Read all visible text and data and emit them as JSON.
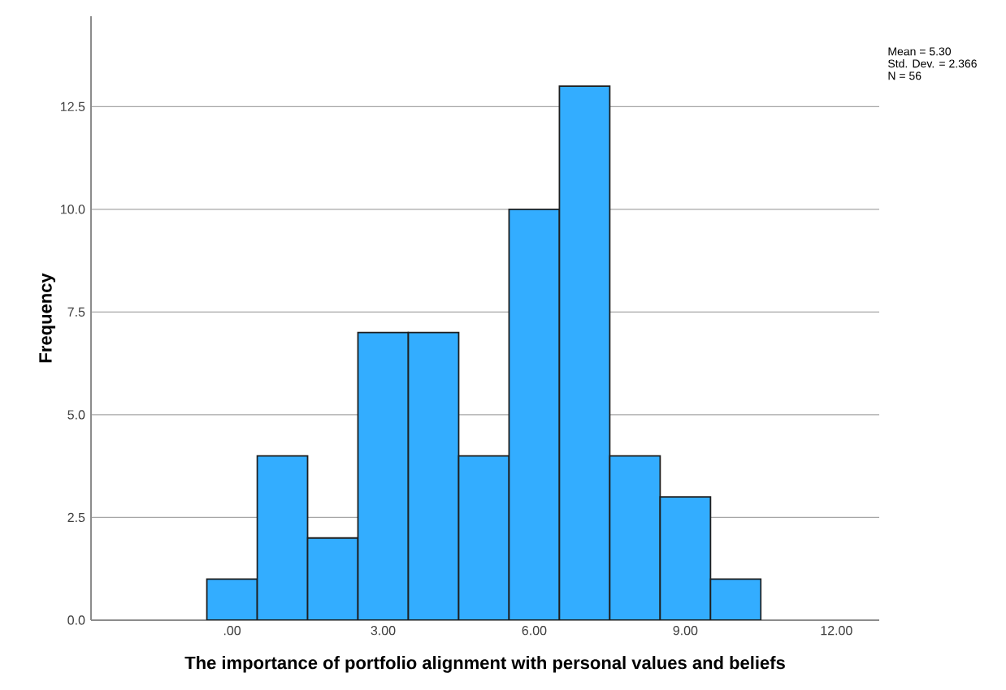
{
  "chart_data": {
    "type": "histogram",
    "xlabel": "The importance of portfolio alignment with personal values and beliefs",
    "ylabel": "Frequency",
    "bins": [
      -0.5,
      0.5,
      1.5,
      2.5,
      3.5,
      4.5,
      5.5,
      6.5,
      7.5,
      8.5,
      9.5,
      10.5
    ],
    "values": [
      1,
      4,
      2,
      7,
      7,
      4,
      10,
      13,
      4,
      3,
      1
    ],
    "color": "#33adff",
    "xlim": [
      -2.8,
      12.85
    ],
    "ylim": [
      0,
      14.7
    ],
    "xticks": [
      {
        "value": 0,
        "label": ".00"
      },
      {
        "value": 3,
        "label": "3.00"
      },
      {
        "value": 6,
        "label": "6.00"
      },
      {
        "value": 9,
        "label": "9.00"
      },
      {
        "value": 12,
        "label": "12.00"
      }
    ],
    "yticks": [
      {
        "value": 0,
        "label": "0.0"
      },
      {
        "value": 2.5,
        "label": "2.5"
      },
      {
        "value": 5,
        "label": "5.0"
      },
      {
        "value": 7.5,
        "label": "7.5"
      },
      {
        "value": 10,
        "label": "10.0"
      },
      {
        "value": 12.5,
        "label": "12.5"
      }
    ],
    "grid": "y",
    "annotations": [
      "Mean = 5.30",
      "Std. Dev. = 2.366",
      "N = 56"
    ]
  }
}
